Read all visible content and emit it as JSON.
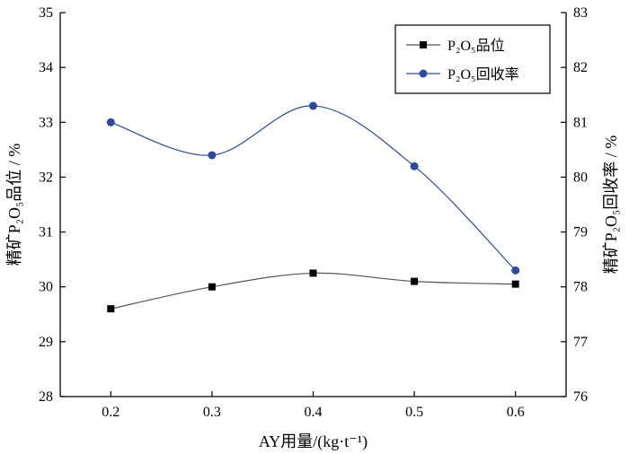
{
  "chart_data": {
    "type": "line",
    "title": "",
    "x": [
      0.2,
      0.3,
      0.4,
      0.5,
      0.6
    ],
    "x_tick_labels": [
      "0.2",
      "0.3",
      "0.4",
      "0.5",
      "0.6"
    ],
    "xlabel": "AY用量/(kg·t⁻¹)",
    "xlim": [
      0.15,
      0.65
    ],
    "left_axis": {
      "label": "精矿P₂O₅品位 / %",
      "ylim": [
        28,
        35
      ],
      "ticks": [
        28,
        29,
        30,
        31,
        32,
        33,
        34,
        35
      ]
    },
    "right_axis": {
      "label": "精矿P₂O₅回收率 / %",
      "ylim": [
        76,
        83
      ],
      "ticks": [
        76,
        77,
        78,
        79,
        80,
        81,
        82,
        83
      ]
    },
    "series": [
      {
        "name": "P₂O₅品位",
        "axis": "left",
        "marker": "square",
        "color": "#000000",
        "line_color": "#555555",
        "values": [
          29.6,
          30.0,
          30.25,
          30.1,
          30.05
        ]
      },
      {
        "name": "P₂O₅回收率",
        "axis": "right",
        "marker": "circle",
        "color": "#2e4a9e",
        "line_color": "#2e4a9e",
        "values": [
          81.0,
          80.4,
          81.3,
          80.2,
          78.3
        ]
      }
    ],
    "legend_position": "top-right",
    "grid": false
  }
}
